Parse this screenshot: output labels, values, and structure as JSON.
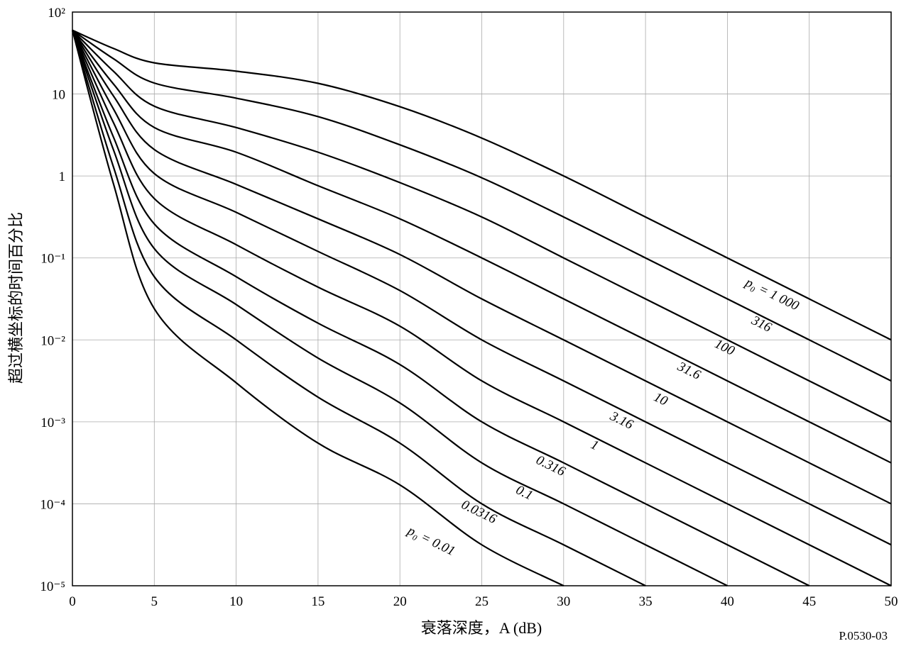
{
  "chart_data": {
    "type": "line",
    "xlabel": "衰落深度，A (dB)",
    "ylabel": "超过横坐标的时间百分比",
    "note": "P.0530-03",
    "log_y": true,
    "grid": true,
    "color": "#000000",
    "xlim": [
      0,
      50
    ],
    "xticks": [
      0,
      5,
      10,
      15,
      20,
      25,
      30,
      35,
      40,
      45,
      50
    ],
    "ylim": [
      1e-05,
      100
    ],
    "yticks": [
      {
        "value": 1e-05,
        "label": "10⁻⁵"
      },
      {
        "value": 0.0001,
        "label": "10⁻⁴"
      },
      {
        "value": 0.001,
        "label": "10⁻³"
      },
      {
        "value": 0.01,
        "label": "10⁻²"
      },
      {
        "value": 0.1,
        "label": "10⁻¹"
      },
      1,
      10,
      {
        "value": 100,
        "label": "10²"
      }
    ],
    "x": [
      0,
      2.5,
      5,
      10,
      15,
      20,
      25,
      30,
      35,
      40,
      45,
      50
    ],
    "series": [
      {
        "name": "p₀ = 1 000",
        "values": [
          60,
          36,
          24,
          19,
          13.5,
          7,
          2.9,
          1,
          0.316,
          0.1,
          0.0316,
          0.01
        ]
      },
      {
        "name": "316",
        "values": [
          60,
          27,
          13.6,
          8.9,
          5.3,
          2.4,
          0.95,
          0.316,
          0.1,
          0.0316,
          0.01,
          0.00316
        ]
      },
      {
        "name": "100",
        "values": [
          60,
          19,
          7.1,
          3.9,
          1.95,
          0.83,
          0.316,
          0.1,
          0.0316,
          0.01,
          0.00316,
          0.001
        ]
      },
      {
        "name": "31.6",
        "values": [
          60,
          13.3,
          3.9,
          1.95,
          0.76,
          0.3,
          0.1,
          0.0316,
          0.01,
          0.00316,
          0.001,
          0.000316
        ]
      },
      {
        "name": "10",
        "values": [
          60,
          9.5,
          2.1,
          0.79,
          0.3,
          0.11,
          0.0316,
          0.01,
          0.00316,
          0.001,
          0.000316,
          0.0001
        ]
      },
      {
        "name": "3.16",
        "values": [
          60,
          6.6,
          1.07,
          0.36,
          0.12,
          0.04,
          0.01,
          0.00316,
          0.001,
          0.000316,
          0.0001,
          3.16e-05
        ]
      },
      {
        "name": "1",
        "values": [
          60,
          4.5,
          0.53,
          0.145,
          0.044,
          0.0147,
          0.00316,
          0.001,
          0.000316,
          0.0001,
          3.16e-05,
          1e-05
        ]
      },
      {
        "name": "0.316",
        "values": [
          60,
          3,
          0.26,
          0.059,
          0.016,
          0.005,
          0.001,
          0.000316,
          0.0001,
          3.16e-05,
          1e-05,
          null
        ]
      },
      {
        "name": "0.1",
        "values": [
          60,
          2.1,
          0.13,
          0.027,
          0.006,
          0.0017,
          0.000316,
          0.0001,
          3.16e-05,
          1e-05,
          null,
          null
        ]
      },
      {
        "name": "0.0316",
        "values": [
          60,
          1.3,
          0.059,
          0.01,
          0.002,
          0.00055,
          0.0001,
          3.16e-05,
          1e-05,
          null,
          null,
          null
        ]
      },
      {
        "name": "p₀ = 0.01",
        "values": [
          60,
          0.81,
          0.024,
          0.003,
          0.00055,
          0.00017,
          3.16e-05,
          1e-05,
          null,
          null,
          null,
          null
        ]
      }
    ]
  }
}
